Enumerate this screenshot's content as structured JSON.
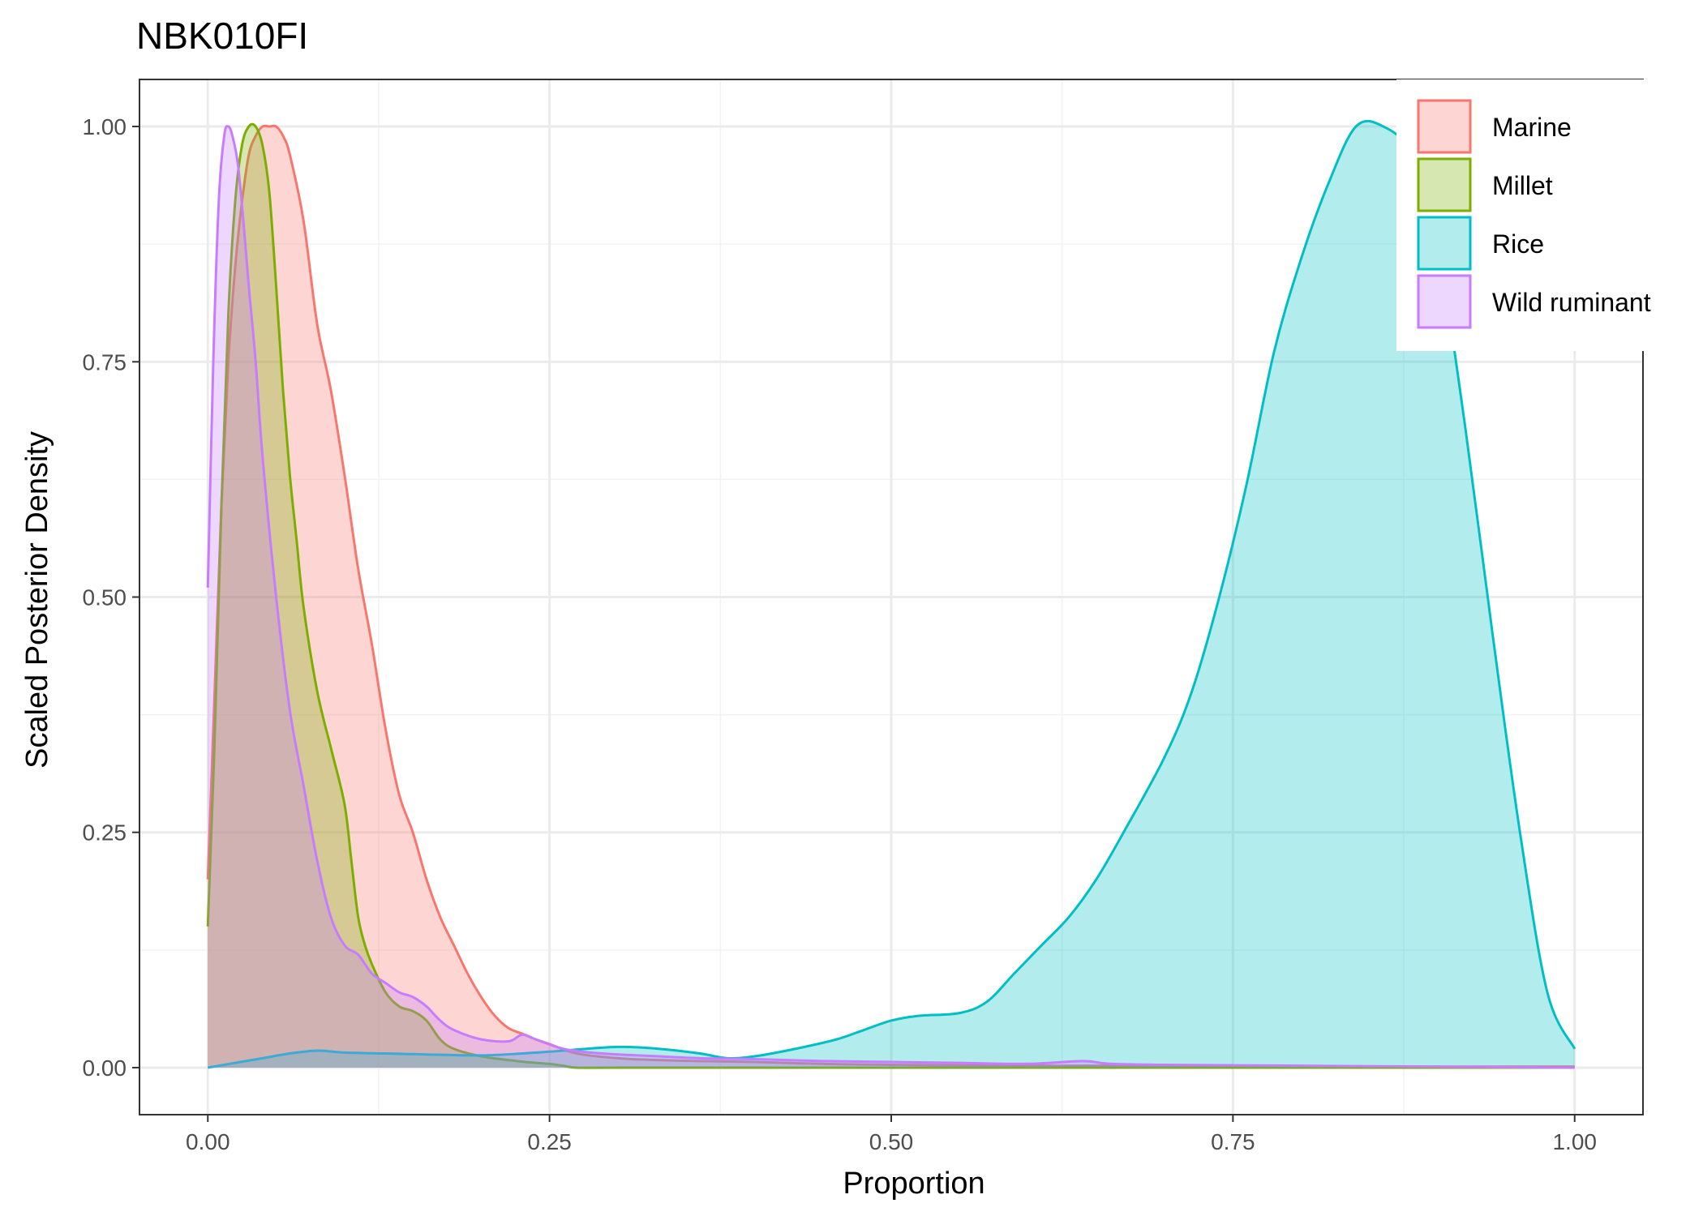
{
  "chart_data": {
    "type": "area",
    "title": "NBK010FI",
    "xlabel": "Proportion",
    "ylabel": "Scaled Posterior Density",
    "xlim": [
      -0.05,
      1.05
    ],
    "ylim": [
      -0.05,
      1.05
    ],
    "xticks": [
      "0.00",
      "0.25",
      "0.50",
      "0.75",
      "1.00"
    ],
    "yticks": [
      "0.00",
      "0.25",
      "0.50",
      "0.75",
      "1.00"
    ],
    "grid": true,
    "legend_position": "top-right",
    "series": [
      {
        "name": "Marine",
        "color": "#F8766D",
        "x": [
          0.0,
          0.005,
          0.01,
          0.015,
          0.02,
          0.025,
          0.03,
          0.035,
          0.04,
          0.045,
          0.05,
          0.055,
          0.06,
          0.07,
          0.08,
          0.09,
          0.1,
          0.11,
          0.12,
          0.13,
          0.14,
          0.15,
          0.16,
          0.17,
          0.18,
          0.19,
          0.2,
          0.21,
          0.22,
          0.23,
          0.24,
          0.25,
          0.27,
          0.3,
          0.33,
          0.36,
          0.4,
          0.45,
          0.5,
          0.6,
          0.7,
          0.8,
          0.9,
          1.0
        ],
        "y": [
          0.2,
          0.4,
          0.6,
          0.75,
          0.85,
          0.92,
          0.97,
          0.99,
          1.0,
          1.0,
          1.0,
          0.99,
          0.97,
          0.9,
          0.79,
          0.72,
          0.63,
          0.53,
          0.45,
          0.36,
          0.29,
          0.25,
          0.2,
          0.16,
          0.13,
          0.1,
          0.075,
          0.055,
          0.042,
          0.036,
          0.03,
          0.025,
          0.015,
          0.01,
          0.008,
          0.007,
          0.006,
          0.004,
          0.003,
          0.002,
          0.002,
          0.001,
          0.001,
          0.001
        ]
      },
      {
        "name": "Millet",
        "color": "#7CAE00",
        "x": [
          0.0,
          0.005,
          0.01,
          0.015,
          0.02,
          0.025,
          0.03,
          0.035,
          0.04,
          0.045,
          0.05,
          0.055,
          0.06,
          0.065,
          0.07,
          0.08,
          0.09,
          0.1,
          0.105,
          0.11,
          0.115,
          0.12,
          0.13,
          0.14,
          0.15,
          0.16,
          0.17,
          0.18,
          0.2,
          0.22,
          0.24,
          0.25,
          0.26,
          0.27,
          0.3,
          0.4,
          0.5,
          0.6,
          0.7,
          0.8,
          0.9,
          1.0
        ],
        "y": [
          0.15,
          0.35,
          0.6,
          0.8,
          0.92,
          0.98,
          1.0,
          1.0,
          0.98,
          0.93,
          0.83,
          0.72,
          0.63,
          0.56,
          0.49,
          0.4,
          0.34,
          0.28,
          0.22,
          0.16,
          0.13,
          0.11,
          0.08,
          0.065,
          0.06,
          0.05,
          0.03,
          0.02,
          0.012,
          0.008,
          0.005,
          0.004,
          0.002,
          0.0,
          0.0,
          0.0,
          0.0,
          0.0,
          0.0,
          0.0,
          0.0,
          0.0
        ]
      },
      {
        "name": "Rice",
        "color": "#00BFC4",
        "x": [
          0.0,
          0.02,
          0.04,
          0.06,
          0.08,
          0.1,
          0.13,
          0.16,
          0.2,
          0.23,
          0.26,
          0.3,
          0.33,
          0.36,
          0.38,
          0.4,
          0.43,
          0.46,
          0.48,
          0.5,
          0.52,
          0.55,
          0.57,
          0.59,
          0.61,
          0.63,
          0.65,
          0.67,
          0.7,
          0.72,
          0.74,
          0.76,
          0.78,
          0.8,
          0.82,
          0.84,
          0.86,
          0.88,
          0.9,
          0.92,
          0.94,
          0.96,
          0.98,
          1.0
        ],
        "y": [
          0.0,
          0.005,
          0.01,
          0.015,
          0.018,
          0.016,
          0.015,
          0.014,
          0.013,
          0.015,
          0.018,
          0.022,
          0.02,
          0.015,
          0.01,
          0.012,
          0.02,
          0.03,
          0.04,
          0.05,
          0.055,
          0.058,
          0.07,
          0.1,
          0.13,
          0.16,
          0.2,
          0.25,
          0.33,
          0.4,
          0.5,
          0.62,
          0.76,
          0.86,
          0.94,
          1.0,
          1.0,
          0.97,
          0.87,
          0.68,
          0.46,
          0.25,
          0.08,
          0.02
        ]
      },
      {
        "name": "Wild ruminant",
        "color": "#C77CFF",
        "x": [
          0.0,
          0.004,
          0.008,
          0.012,
          0.015,
          0.018,
          0.022,
          0.026,
          0.03,
          0.035,
          0.04,
          0.05,
          0.06,
          0.07,
          0.08,
          0.09,
          0.1,
          0.11,
          0.12,
          0.13,
          0.14,
          0.15,
          0.16,
          0.17,
          0.18,
          0.2,
          0.22,
          0.23,
          0.24,
          0.26,
          0.28,
          0.3,
          0.33,
          0.36,
          0.4,
          0.45,
          0.5,
          0.55,
          0.6,
          0.64,
          0.66,
          0.7,
          0.8,
          0.9,
          1.0
        ],
        "y": [
          0.51,
          0.75,
          0.92,
          0.99,
          1.0,
          0.99,
          0.96,
          0.9,
          0.83,
          0.75,
          0.65,
          0.5,
          0.38,
          0.3,
          0.22,
          0.16,
          0.13,
          0.12,
          0.1,
          0.09,
          0.08,
          0.075,
          0.065,
          0.05,
          0.04,
          0.03,
          0.028,
          0.035,
          0.03,
          0.02,
          0.016,
          0.014,
          0.012,
          0.01,
          0.009,
          0.007,
          0.006,
          0.005,
          0.004,
          0.007,
          0.004,
          0.003,
          0.002,
          0.001,
          0.0
        ]
      }
    ]
  }
}
